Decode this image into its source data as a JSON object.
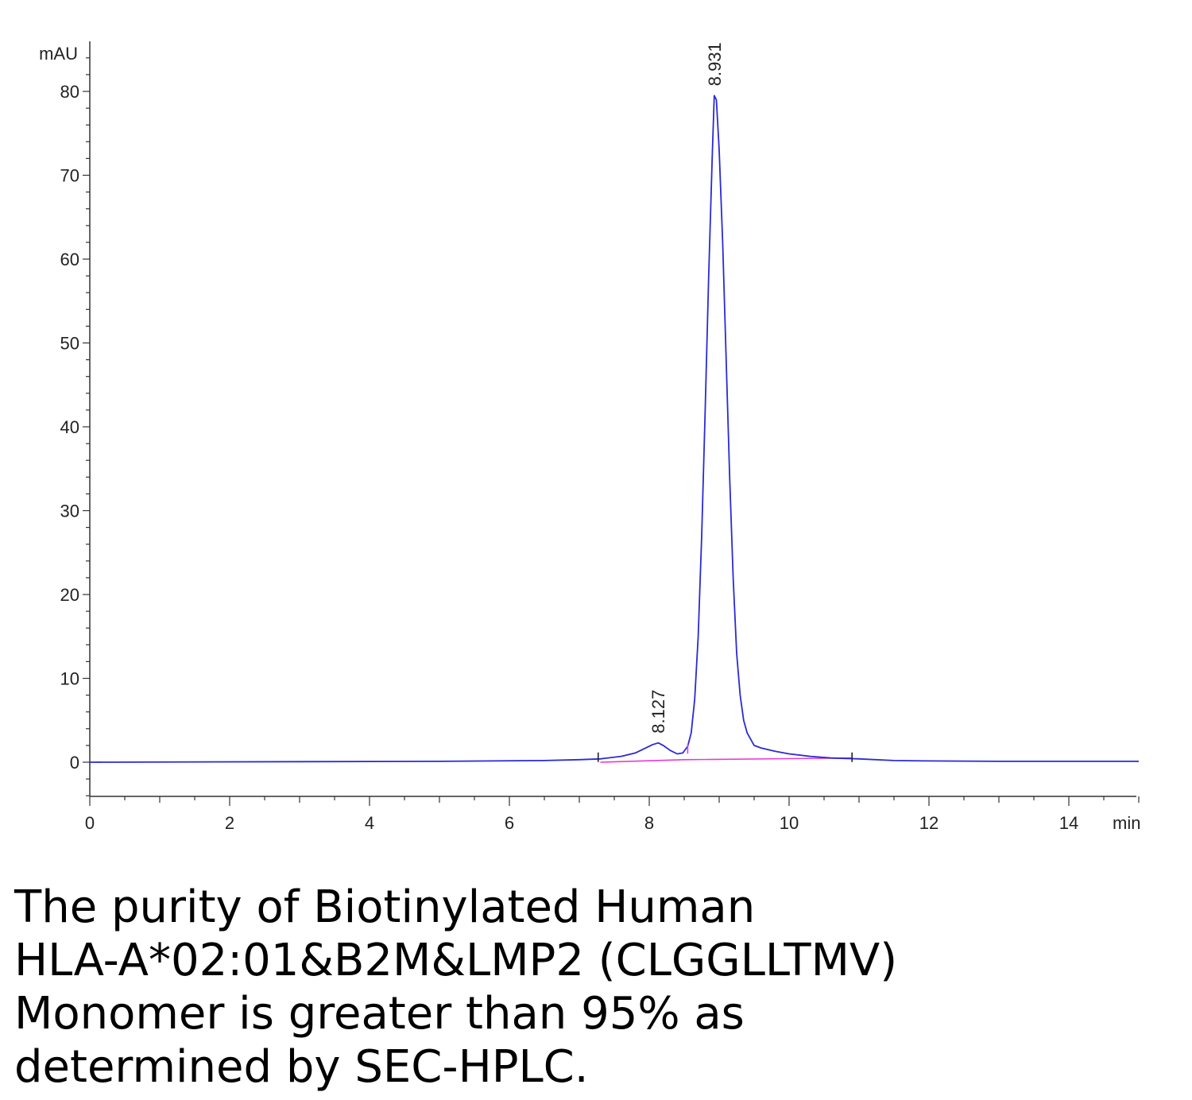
{
  "chart_data": {
    "type": "line",
    "xunit_label": "min",
    "yunit_label": "mAU",
    "xlim": [
      0,
      15
    ],
    "ylim": [
      -4,
      84
    ],
    "x_ticks": [
      0,
      2,
      4,
      6,
      8,
      10,
      12,
      14
    ],
    "x_tick_labels": [
      "0",
      "2",
      "4",
      "6",
      "8",
      "10",
      "12",
      "14"
    ],
    "y_ticks": [
      0,
      10,
      20,
      30,
      40,
      50,
      60,
      70,
      80
    ],
    "y_tick_labels": [
      "0",
      "10",
      "20",
      "30",
      "40",
      "50",
      "60",
      "70",
      "80"
    ],
    "grid": false,
    "series": [
      {
        "color": "#2a2ad6",
        "x": [
          0,
          5.0,
          6.5,
          7.0,
          7.3,
          7.6,
          7.8,
          7.95,
          8.05,
          8.13,
          8.2,
          8.3,
          8.4,
          8.48,
          8.55,
          8.6,
          8.65,
          8.7,
          8.75,
          8.8,
          8.85,
          8.9,
          8.93,
          8.96,
          9.0,
          9.05,
          9.1,
          9.15,
          9.2,
          9.25,
          9.3,
          9.35,
          9.4,
          9.5,
          9.6,
          9.8,
          10.0,
          10.3,
          10.6,
          11.0,
          11.5,
          12.0,
          13.0,
          14.0,
          15.0
        ],
        "y": [
          0.0,
          0.1,
          0.2,
          0.3,
          0.4,
          0.7,
          1.1,
          1.7,
          2.1,
          2.3,
          2.0,
          1.4,
          1.0,
          1.1,
          1.9,
          3.5,
          7.5,
          15,
          27,
          42,
          58,
          72,
          79.5,
          79,
          73,
          62,
          48,
          34,
          22,
          13,
          8,
          5,
          3.5,
          2.0,
          1.7,
          1.3,
          1.0,
          0.7,
          0.5,
          0.4,
          0.2,
          0.15,
          0.1,
          0.1,
          0.1
        ]
      },
      {
        "color": "#e83ad8",
        "x": [
          7.3,
          8.5,
          10.9
        ],
        "y": [
          0.0,
          0.3,
          0.5
        ]
      }
    ],
    "peak_labels": [
      {
        "x": 8.127,
        "y": 2.3,
        "text": "8.127"
      },
      {
        "x": 8.931,
        "y": 79.5,
        "text": "8.931"
      }
    ],
    "event_markers": [
      7.27,
      8.55,
      10.9
    ]
  },
  "caption": {
    "line1": "The purity of Biotinylated Human",
    "line2": "HLA-A*02:01&B2M&LMP2 (CLGGLLTMV)",
    "line3": "Monomer is greater than 95% as",
    "line4": "determined by SEC-HPLC."
  }
}
